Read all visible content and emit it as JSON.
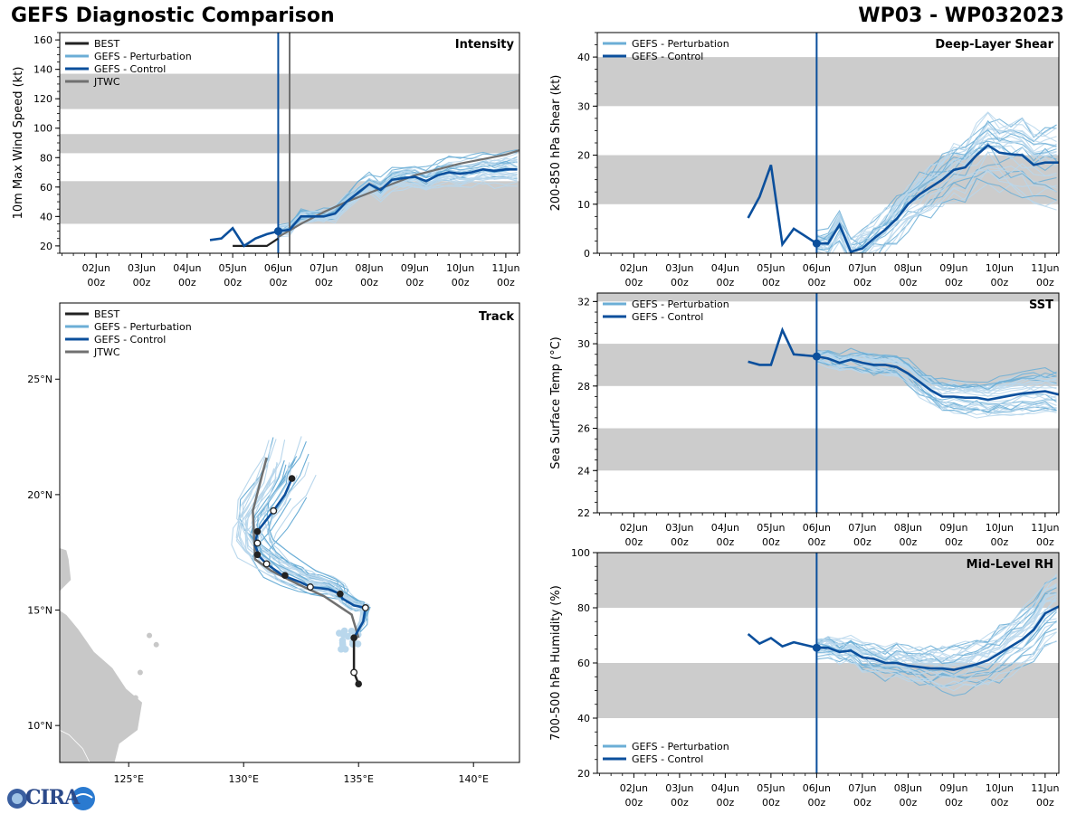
{
  "header": {
    "title": "GEFS Diagnostic Comparison",
    "storm": "WP03 - WP032023"
  },
  "colors": {
    "best": "#222222",
    "perturbation": "#6baed6",
    "perturbation_light": "#b9d7ec",
    "control": "#0b4f9c",
    "jtwc": "#707070",
    "band": "#cccccc",
    "land": "#c8c8c8"
  },
  "time_axis": {
    "labels": [
      [
        "02Jun",
        "00z"
      ],
      [
        "03Jun",
        "00z"
      ],
      [
        "04Jun",
        "00z"
      ],
      [
        "05Jun",
        "00z"
      ],
      [
        "06Jun",
        "00z"
      ],
      [
        "07Jun",
        "00z"
      ],
      [
        "08Jun",
        "00z"
      ],
      [
        "09Jun",
        "00z"
      ],
      [
        "10Jun",
        "00z"
      ],
      [
        "11Jun",
        "00z"
      ]
    ],
    "ticks": [
      2,
      3,
      4,
      5,
      6,
      7,
      8,
      9,
      10,
      11
    ],
    "range": [
      1.2,
      11.3
    ],
    "init_time": 6.0
  },
  "logo": {
    "text": "CIRA"
  },
  "chart_data": [
    {
      "id": "intensity",
      "type": "line",
      "title": "Intensity",
      "ylabel": "10m Max Wind Speed (kt)",
      "ylim": [
        15,
        165
      ],
      "yticks": [
        20,
        40,
        60,
        80,
        100,
        120,
        140,
        160
      ],
      "bands": [
        [
          35,
          64
        ],
        [
          83,
          96
        ],
        [
          113,
          137
        ]
      ],
      "jtwc_time": 6.25,
      "legend": [
        "BEST",
        "GEFS - Perturbation",
        "GEFS - Control",
        "JTWC"
      ],
      "series": [
        {
          "name": "BEST",
          "x": [
            5.0,
            5.75,
            6.0
          ],
          "y": [
            20,
            20,
            25
          ]
        },
        {
          "name": "GEFS - Control",
          "x": [
            4.5,
            4.75,
            5.0,
            5.25,
            5.5,
            5.75,
            6.0,
            6.25,
            6.5,
            6.75,
            7.0,
            7.25,
            7.5,
            7.75,
            8.0,
            8.25,
            8.5,
            8.75,
            9.0,
            9.25,
            9.5,
            9.75,
            10.0,
            10.25,
            10.5,
            10.75,
            11.0,
            11.25
          ],
          "y": [
            24,
            25,
            32,
            20,
            25,
            28,
            30,
            31,
            40,
            40,
            40,
            42,
            50,
            56,
            62,
            58,
            65,
            66,
            67,
            64,
            68,
            70,
            69,
            70,
            72,
            71,
            72,
            72
          ]
        },
        {
          "name": "JTWC",
          "x": [
            6.0,
            6.5,
            7.0,
            7.5,
            8.0,
            8.5,
            9.0,
            9.5,
            10.0,
            10.5,
            11.0,
            11.3
          ],
          "y": [
            26,
            35,
            43,
            50,
            56,
            62,
            68,
            72,
            76,
            79,
            82,
            85
          ]
        }
      ]
    },
    {
      "id": "shear",
      "type": "line",
      "title": "Deep-Layer Shear",
      "ylabel": "200-850 hPa Shear (kt)",
      "ylim": [
        0,
        45
      ],
      "yticks": [
        0,
        10,
        20,
        30,
        40
      ],
      "bands": [
        [
          10,
          20
        ],
        [
          30,
          40
        ]
      ],
      "legend": [
        "GEFS - Perturbation",
        "GEFS - Control"
      ],
      "series": [
        {
          "name": "GEFS - Control",
          "x": [
            4.5,
            4.75,
            5.0,
            5.25,
            5.5,
            6.0,
            6.25,
            6.5,
            6.75,
            7.0,
            7.25,
            7.5,
            7.75,
            8.0,
            8.25,
            8.5,
            8.75,
            9.0,
            9.25,
            9.5,
            9.75,
            10.0,
            10.25,
            10.5,
            10.75,
            11.0,
            11.3
          ],
          "y": [
            7.2,
            11.5,
            18,
            1.8,
            5,
            2,
            2,
            5.8,
            0.3,
            1,
            3,
            4.8,
            7,
            10,
            12,
            13.5,
            15,
            17,
            17.5,
            20,
            22,
            20.5,
            20.2,
            20,
            18,
            18.5,
            18.5
          ]
        }
      ]
    },
    {
      "id": "sst",
      "type": "line",
      "title": "SST",
      "ylabel": "Sea Surface Temp (°C)",
      "ylim": [
        22,
        32.4
      ],
      "yticks": [
        22,
        24,
        26,
        28,
        30,
        32
      ],
      "bands": [
        [
          24,
          26
        ],
        [
          28,
          30
        ],
        [
          32,
          32.4
        ]
      ],
      "legend": [
        "GEFS - Perturbation",
        "GEFS - Control"
      ],
      "series": [
        {
          "name": "GEFS - Control",
          "x": [
            4.5,
            4.75,
            5.0,
            5.25,
            5.5,
            6.0,
            6.25,
            6.5,
            6.75,
            7.0,
            7.25,
            7.5,
            7.75,
            8.0,
            8.25,
            8.5,
            8.75,
            9.0,
            9.25,
            9.5,
            9.75,
            10.0,
            10.25,
            10.5,
            10.75,
            11.0,
            11.3
          ],
          "y": [
            29.15,
            29.0,
            29.0,
            30.65,
            29.5,
            29.4,
            29.3,
            29.1,
            29.25,
            29.1,
            29.0,
            29.0,
            28.9,
            28.6,
            28.2,
            27.8,
            27.5,
            27.5,
            27.45,
            27.45,
            27.35,
            27.45,
            27.55,
            27.65,
            27.7,
            27.75,
            27.6
          ]
        }
      ]
    },
    {
      "id": "rh",
      "type": "line",
      "title": "Mid-Level RH",
      "ylabel": "700-500 hPa Humidity (%)",
      "ylim": [
        20,
        100
      ],
      "yticks": [
        20,
        40,
        60,
        80,
        100
      ],
      "bands": [
        [
          40,
          60
        ],
        [
          80,
          100
        ]
      ],
      "legend": [
        "GEFS - Perturbation",
        "GEFS - Control"
      ],
      "series": [
        {
          "name": "GEFS - Control",
          "x": [
            4.5,
            4.75,
            5.0,
            5.25,
            5.5,
            6.0,
            6.25,
            6.5,
            6.75,
            7.0,
            7.25,
            7.5,
            7.75,
            8.0,
            8.25,
            8.5,
            8.75,
            9.0,
            9.25,
            9.5,
            9.75,
            10.0,
            10.25,
            10.5,
            10.75,
            11.0,
            11.3
          ],
          "y": [
            70.5,
            67,
            69,
            66,
            67.5,
            65.5,
            65.5,
            64,
            64.5,
            62,
            61.5,
            60,
            60,
            59,
            58.5,
            58,
            58,
            57.5,
            58.5,
            59.5,
            61,
            63.5,
            66,
            68.5,
            72,
            78,
            80.5
          ]
        }
      ]
    },
    {
      "id": "track",
      "type": "scatter",
      "title": "Track",
      "xlim": [
        122,
        142
      ],
      "ylim": [
        8.4,
        28.3
      ],
      "xticks": [
        125,
        130,
        135,
        140
      ],
      "yticks": [
        10,
        15,
        20,
        25
      ],
      "xtick_labels": [
        "125°E",
        "130°E",
        "135°E",
        "140°E"
      ],
      "ytick_labels": [
        "10°N",
        "15°N",
        "20°N",
        "25°N"
      ],
      "legend": [
        "BEST",
        "GEFS - Perturbation",
        "GEFS - Control",
        "JTWC"
      ],
      "best_track": [
        [
          135.0,
          11.8
        ],
        [
          134.8,
          12.3
        ],
        [
          134.8,
          13.8
        ]
      ],
      "best_open_points": [
        [
          134.8,
          12.3
        ]
      ],
      "best_filled_points": [
        [
          135.0,
          11.8
        ]
      ],
      "control_track": [
        [
          134.8,
          13.8
        ],
        [
          135.2,
          14.5
        ],
        [
          135.3,
          15.1
        ],
        [
          134.8,
          15.2
        ],
        [
          134.3,
          15.5
        ],
        [
          134.2,
          15.7
        ],
        [
          133.7,
          15.9
        ],
        [
          132.9,
          16.0
        ],
        [
          132.5,
          16.2
        ],
        [
          131.7,
          16.5
        ],
        [
          131.0,
          17.0
        ],
        [
          130.7,
          17.3
        ],
        [
          130.5,
          17.8
        ],
        [
          130.6,
          18.4
        ],
        [
          131.3,
          19.3
        ],
        [
          131.8,
          20.0
        ],
        [
          132.1,
          20.7
        ]
      ],
      "control_open_points": [
        [
          135.3,
          15.1
        ],
        [
          132.9,
          16.0
        ],
        [
          131.0,
          17.0
        ],
        [
          130.6,
          17.9
        ],
        [
          131.3,
          19.3
        ]
      ],
      "control_filled_points": [
        [
          134.8,
          13.8
        ],
        [
          134.2,
          15.7
        ],
        [
          131.8,
          16.5
        ],
        [
          130.6,
          17.4
        ],
        [
          130.6,
          18.4
        ],
        [
          132.1,
          20.7
        ]
      ],
      "jtwc_track": [
        [
          135.0,
          13.8
        ],
        [
          134.7,
          14.8
        ],
        [
          133.5,
          15.6
        ],
        [
          132.4,
          16.1
        ],
        [
          131.2,
          16.7
        ],
        [
          130.5,
          17.2
        ],
        [
          130.4,
          19.3
        ],
        [
          131.0,
          21.6
        ]
      ]
    }
  ]
}
